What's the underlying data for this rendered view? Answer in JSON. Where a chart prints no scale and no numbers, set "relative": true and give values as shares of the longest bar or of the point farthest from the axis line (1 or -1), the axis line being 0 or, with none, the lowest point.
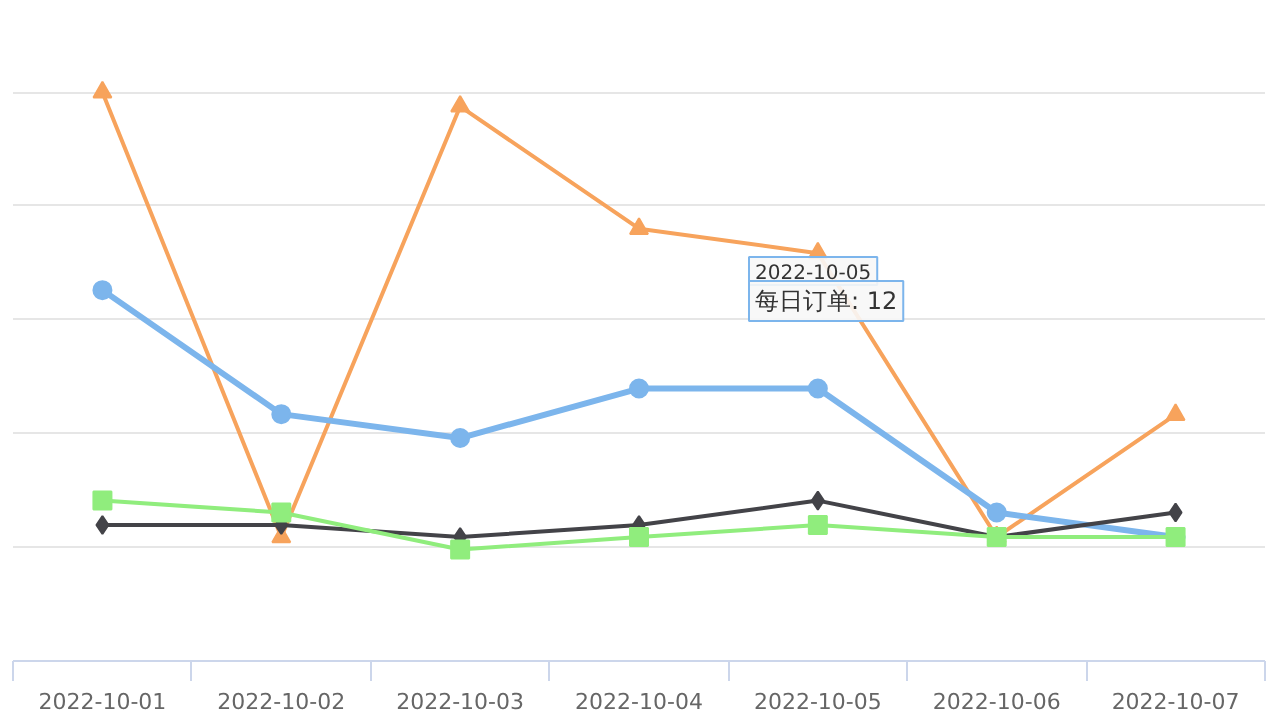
{
  "chart_data": {
    "type": "line",
    "relative": true,
    "grid": "y",
    "categories": [
      "2022-10-01",
      "2022-10-02",
      "2022-10-03",
      "2022-10-04",
      "2022-10-05",
      "2022-10-06",
      "2022-10-07"
    ],
    "series": [
      {
        "color": "#f7a35c",
        "marker": "triangle",
        "values": [
          1,
          0.218,
          0.975,
          0.76,
          0.717,
          0.218,
          0.433
        ]
      },
      {
        "color": "#7cb5ec",
        "marker": "circle",
        "values": [
          0.652,
          0.434,
          0.392,
          0.479,
          0.479,
          0.261,
          0.218
        ]
      },
      {
        "color": "#434348",
        "marker": "diamond",
        "values": [
          0.239,
          0.239,
          0.218,
          0.239,
          0.282,
          0.218,
          0.261
        ]
      },
      {
        "color": "#90ed7d",
        "marker": "square",
        "values": [
          0.282,
          0.261,
          0.196,
          0.218,
          0.239,
          0.218,
          0.218
        ]
      }
    ],
    "annotations": [
      "2022-10-05",
      "每日订单: 12"
    ]
  }
}
